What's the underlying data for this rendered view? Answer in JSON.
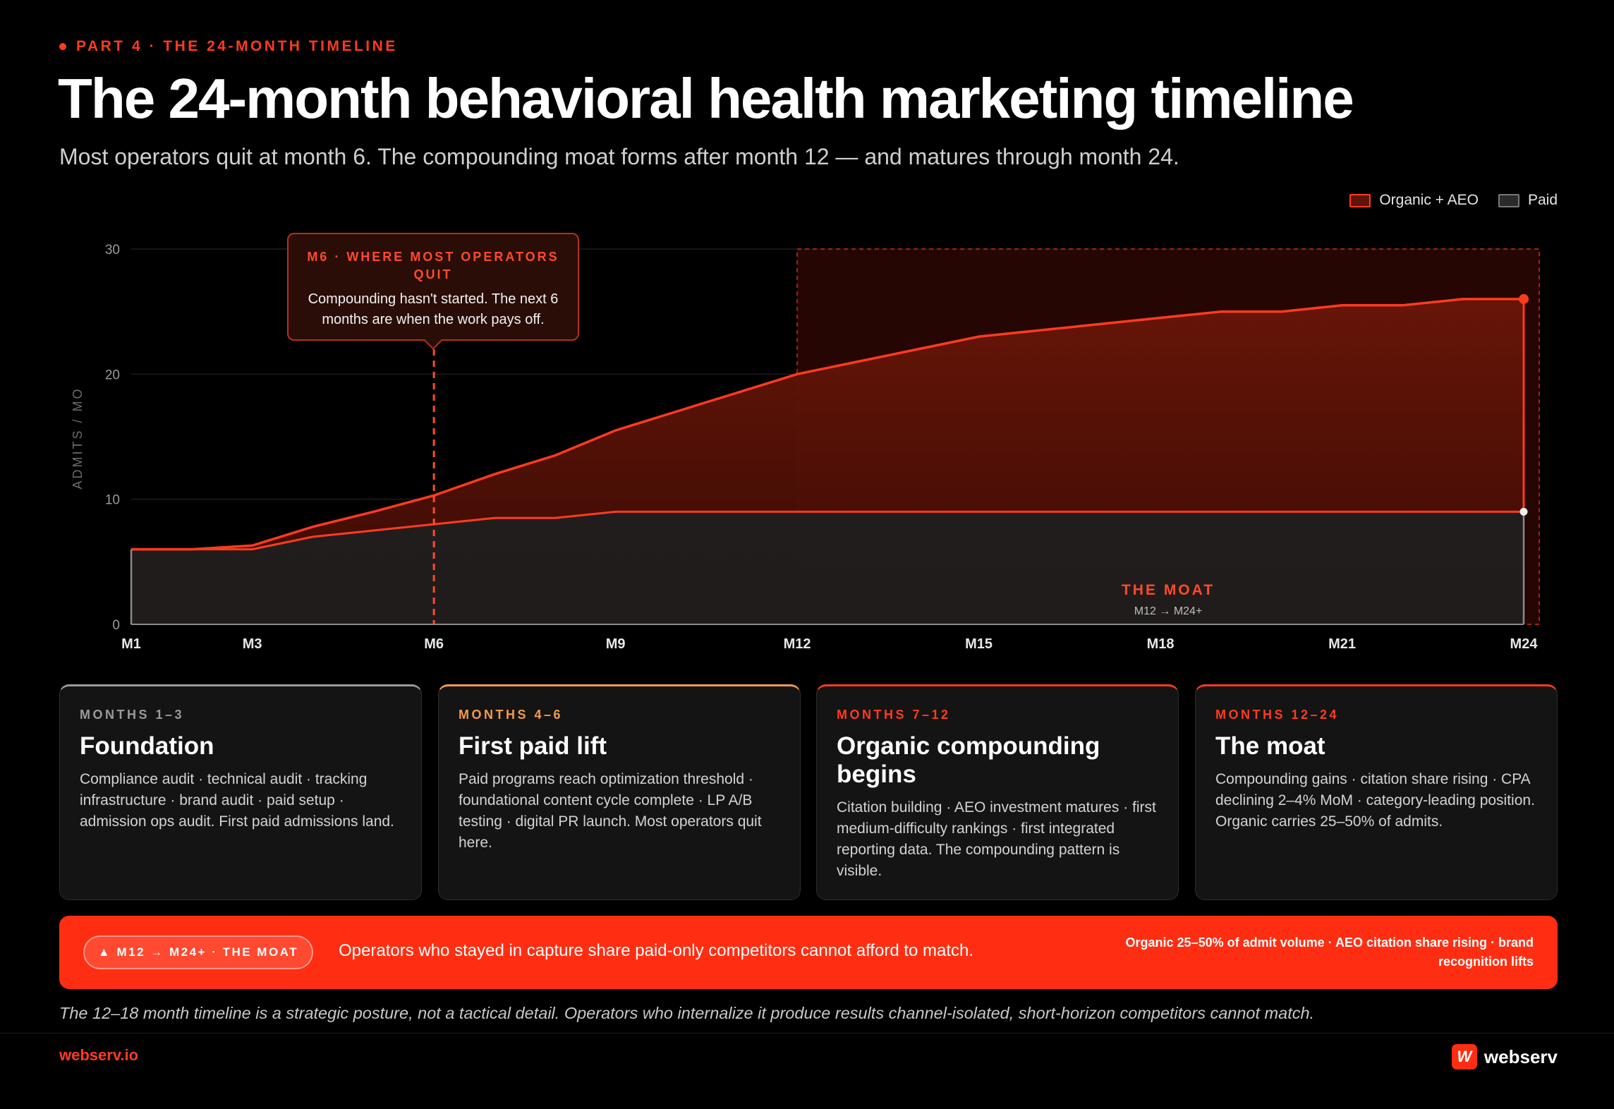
{
  "header": {
    "eyebrow": "PART 4 · THE 24-MONTH TIMELINE",
    "title": "The 24-month behavioral health marketing timeline",
    "subtitle": "Most operators quit at month 6. The compounding moat forms after month 12 — and matures through month 24."
  },
  "colors": {
    "accent": "#ff3b1f",
    "organic_fill": "#5e1407",
    "paid_fill": "#1f1f1f",
    "banner": "#ff2e12"
  },
  "chart_data": {
    "type": "area",
    "ylabel": "ADMITS / MO",
    "xlabel": "",
    "ylim": [
      0,
      30
    ],
    "yticks": [
      0,
      10,
      20,
      30
    ],
    "xlim": [
      1,
      24
    ],
    "xticks": [
      {
        "month": 1,
        "label": "M1"
      },
      {
        "month": 3,
        "label": "M3"
      },
      {
        "month": 6,
        "label": "M6"
      },
      {
        "month": 9,
        "label": "M9"
      },
      {
        "month": 12,
        "label": "M12"
      },
      {
        "month": 15,
        "label": "M15"
      },
      {
        "month": 18,
        "label": "M18"
      },
      {
        "month": 21,
        "label": "M21"
      },
      {
        "month": 24,
        "label": "M24"
      }
    ],
    "legend_position": "top-right",
    "series": [
      {
        "name": "Organic + AEO",
        "x": [
          1,
          2,
          3,
          4,
          5,
          6,
          7,
          8,
          9,
          10,
          11,
          12,
          13,
          14,
          15,
          16,
          17,
          18,
          19,
          20,
          21,
          22,
          23,
          24
        ],
        "values": [
          6,
          6,
          6.3,
          7.8,
          9,
          10.3,
          12,
          13.5,
          15.5,
          17,
          18.5,
          20,
          21,
          22,
          23,
          23.5,
          24,
          24.5,
          25,
          25,
          25.5,
          25.5,
          26,
          26
        ]
      },
      {
        "name": "Paid",
        "x": [
          1,
          2,
          3,
          4,
          5,
          6,
          7,
          8,
          9,
          10,
          11,
          12,
          13,
          14,
          15,
          16,
          17,
          18,
          19,
          20,
          21,
          22,
          23,
          24
        ],
        "values": [
          6,
          6,
          6,
          7,
          7.5,
          8,
          8.5,
          8.5,
          9,
          9,
          9,
          9,
          9,
          9,
          9,
          9,
          9,
          9,
          9,
          9,
          9,
          9,
          9,
          9
        ]
      }
    ],
    "moat": {
      "start": 12,
      "end": 24,
      "label": "THE MOAT",
      "sublabel": "M12 → M24+"
    },
    "annotation": {
      "month": 6,
      "title": "M6 · WHERE MOST OPERATORS QUIT",
      "text": "Compounding hasn't started. The next 6 months are when the work pays off."
    }
  },
  "cards": [
    {
      "kicker": "MONTHS 1–3",
      "title": "Foundation",
      "body": "Compliance audit · technical audit · tracking infrastructure · brand audit · paid setup · admission ops audit. First paid admissions land.",
      "color": "#9a9a9a"
    },
    {
      "kicker": "MONTHS 4–6",
      "title": "First paid lift",
      "body": "Paid programs reach optimization threshold · foundational content cycle complete · LP A/B testing · digital PR launch. Most operators quit here.",
      "color": "#f59a4a"
    },
    {
      "kicker": "MONTHS 7–12",
      "title": "Organic compounding begins",
      "body": "Citation building · AEO investment matures · first medium-difficulty rankings · first integrated reporting data. The compounding pattern is visible.",
      "color": "#ff3b1f"
    },
    {
      "kicker": "MONTHS 12–24",
      "title": "The moat",
      "body": "Compounding gains · citation share rising · CPA declining 2–4% MoM · category-leading position. Organic carries 25–50% of admits.",
      "color": "#ff3b1f"
    }
  ],
  "banner": {
    "pill": "▲ M12 → M24+ · THE MOAT",
    "main": "Operators who stayed in capture share paid-only competitors cannot afford to match.",
    "side": "Organic 25–50% of admit volume · AEO citation share rising · brand recognition lifts"
  },
  "footnote": "The 12–18 month timeline is a strategic posture, not a tactical detail. Operators who internalize it produce results channel-isolated, short-horizon competitors cannot match.",
  "footer": {
    "site": "webserv.io",
    "brand_mark": "W",
    "brand": "webserv"
  }
}
